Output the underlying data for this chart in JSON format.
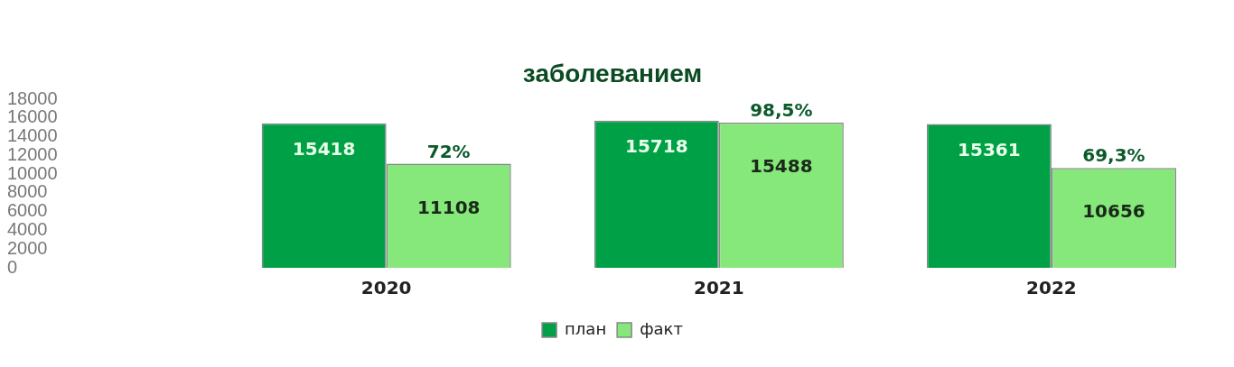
{
  "chart_data": {
    "type": "bar",
    "title": "заболеванием",
    "categories": [
      "2020",
      "2021",
      "2022"
    ],
    "series": [
      {
        "name": "план",
        "color": "#00a046",
        "values": [
          15418,
          15718,
          15361
        ]
      },
      {
        "name": "факт",
        "color": "#86e87a",
        "values": [
          11108,
          15488,
          10656
        ]
      }
    ],
    "ylim": [
      0,
      18000
    ],
    "yticks": [
      0,
      2000,
      4000,
      6000,
      8000,
      10000,
      12000,
      14000,
      16000,
      18000
    ],
    "data_labels": true,
    "grid": false,
    "legend": "bottom",
    "annotations": [
      {
        "text": "72%",
        "x": "2020",
        "y": 11108
      },
      {
        "text": "98,5%",
        "x": "2021",
        "y": 15488
      },
      {
        "text": "69,3%",
        "x": "2022",
        "y": 10656
      }
    ]
  }
}
